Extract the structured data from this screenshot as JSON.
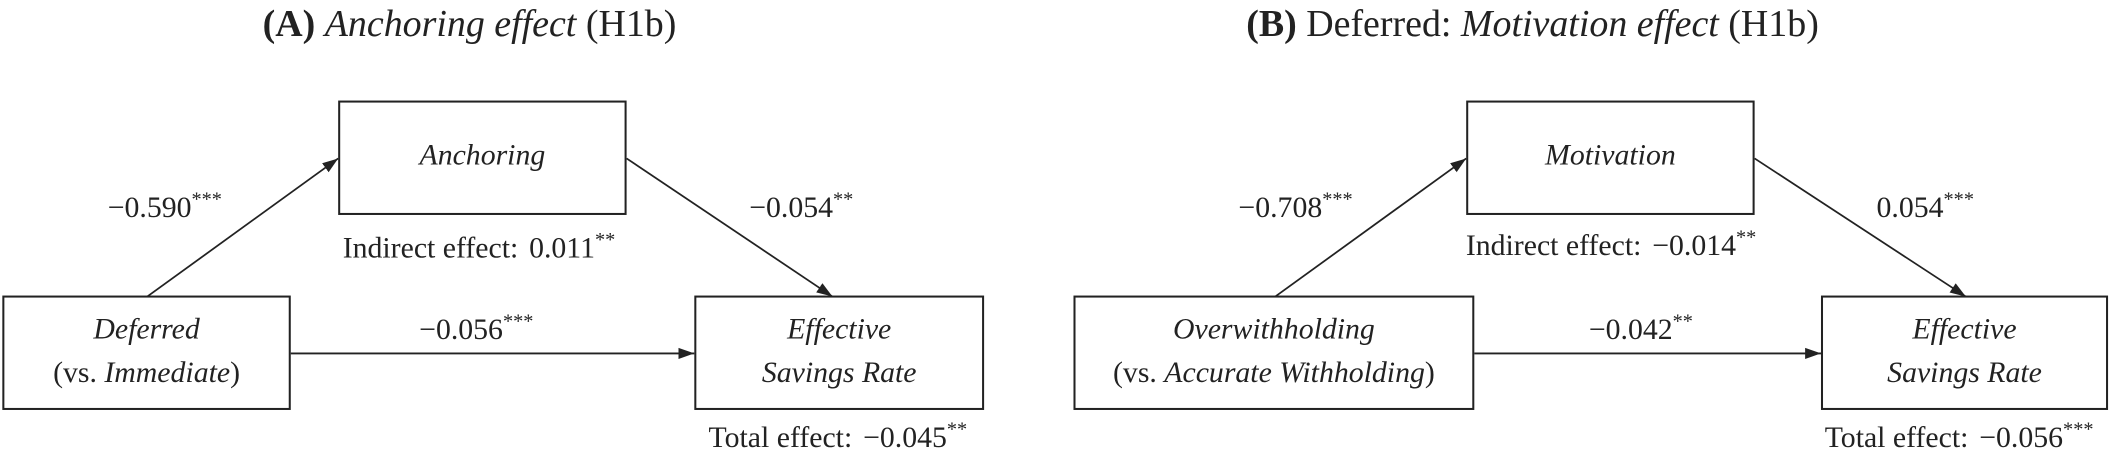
{
  "panels": [
    {
      "title": [
        {
          "text": "(A)",
          "style": "bold"
        },
        {
          "text": "Anchoring effect",
          "style": "italic"
        },
        {
          "text": "(H1b)",
          "style": "plain"
        }
      ],
      "mediator": "Anchoring",
      "predictor": {
        "line1": "Deferred",
        "line2": [
          {
            "text": "(vs. ",
            "style": "plain"
          },
          {
            "text": "Immediate",
            "style": "italic"
          },
          {
            "text": ")",
            "style": "plain"
          }
        ]
      },
      "outcome": {
        "line1": "Effective",
        "line2": "Savings Rate"
      },
      "path_a": {
        "value": "−0.590",
        "sig": "***"
      },
      "path_b": {
        "value": "−0.054",
        "sig": "**"
      },
      "path_c": {
        "value": "−0.056",
        "sig": "***"
      },
      "indirect": {
        "label": "Indirect effect:",
        "value": "0.011",
        "sig": "**"
      },
      "total": {
        "label": "Total effect:",
        "value": "−0.045",
        "sig": "**"
      }
    },
    {
      "title": [
        {
          "text": "(B)",
          "style": "bold"
        },
        {
          "text": "Deferred:",
          "style": "plain"
        },
        {
          "text": "Motivation effect",
          "style": "italic"
        },
        {
          "text": "(H1b)",
          "style": "plain"
        }
      ],
      "mediator": "Motivation",
      "predictor": {
        "line1": "Overwithholding",
        "line2": [
          {
            "text": "(vs. ",
            "style": "plain"
          },
          {
            "text": "Accurate Withholding",
            "style": "italic"
          },
          {
            "text": ")",
            "style": "plain"
          }
        ]
      },
      "outcome": {
        "line1": "Effective",
        "line2": "Savings Rate"
      },
      "path_a": {
        "value": "−0.708",
        "sig": "***"
      },
      "path_b": {
        "value": "0.054",
        "sig": "***"
      },
      "path_c": {
        "value": "−0.042",
        "sig": "**"
      },
      "indirect": {
        "label": "Indirect effect:",
        "value": "−0.014",
        "sig": "**"
      },
      "total": {
        "label": "Total effect:",
        "value": "−0.056",
        "sig": "***"
      }
    }
  ]
}
